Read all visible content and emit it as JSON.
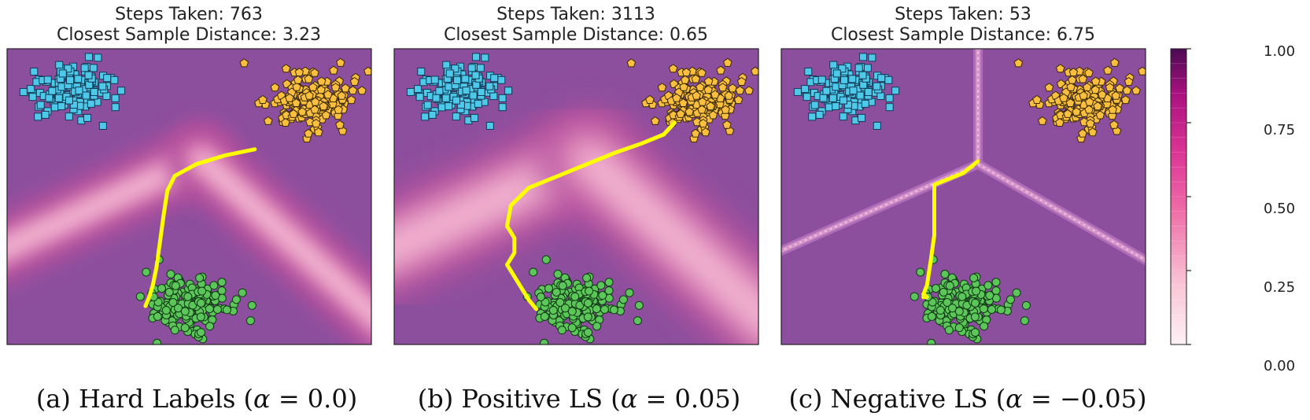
{
  "chart_data": [
    {
      "type": "scatter",
      "title_line1": "Steps Taken: 763",
      "title_line2": "Closest Sample Distance: 3.23",
      "caption_prefix": "(a) Hard Labels (",
      "caption_var": "α",
      "caption_rest": " = 0.0)",
      "style": "hard",
      "trajectory": [
        [
          0.68,
          0.34
        ],
        [
          0.6,
          0.36
        ],
        [
          0.52,
          0.39
        ],
        [
          0.46,
          0.43
        ],
        [
          0.44,
          0.48
        ],
        [
          0.43,
          0.56
        ],
        [
          0.42,
          0.65
        ],
        [
          0.41,
          0.74
        ],
        [
          0.4,
          0.8
        ],
        [
          0.39,
          0.84
        ],
        [
          0.38,
          0.87
        ]
      ],
      "ridge_center": [
        0.53,
        0.37
      ],
      "ridge_arms": [
        [
          0.53,
          -0.05
        ],
        [
          -0.05,
          0.7
        ],
        [
          1.05,
          0.95
        ]
      ]
    },
    {
      "type": "scatter",
      "title_line1": "Steps Taken: 3113",
      "title_line2": "Closest Sample Distance: 0.65",
      "caption_prefix": "(b) Positive LS (",
      "caption_var": "α",
      "caption_rest": " = 0.05)",
      "style": "positive",
      "trajectory": [
        [
          0.77,
          0.25
        ],
        [
          0.74,
          0.29
        ],
        [
          0.68,
          0.32
        ],
        [
          0.61,
          0.35
        ],
        [
          0.53,
          0.39
        ],
        [
          0.45,
          0.43
        ],
        [
          0.37,
          0.47
        ],
        [
          0.32,
          0.53
        ],
        [
          0.31,
          0.6
        ],
        [
          0.33,
          0.64
        ],
        [
          0.33,
          0.69
        ],
        [
          0.31,
          0.73
        ],
        [
          0.34,
          0.79
        ],
        [
          0.37,
          0.85
        ],
        [
          0.39,
          0.88
        ]
      ],
      "ridge_center": [
        0.53,
        0.37
      ],
      "ridge_arms": [
        [
          0.53,
          -0.05
        ],
        [
          -0.05,
          0.7
        ],
        [
          1.05,
          0.95
        ]
      ]
    },
    {
      "type": "scatter",
      "title_line1": "Steps Taken: 53",
      "title_line2": "Closest Sample Distance: 6.75",
      "caption_prefix": "(c) Negative LS (",
      "caption_var": "α",
      "caption_rest": " = −0.05)",
      "style": "negative",
      "trajectory": [
        [
          0.54,
          0.38
        ],
        [
          0.5,
          0.42
        ],
        [
          0.44,
          0.45
        ],
        [
          0.42,
          0.46
        ],
        [
          0.42,
          0.53
        ],
        [
          0.42,
          0.63
        ],
        [
          0.41,
          0.72
        ],
        [
          0.4,
          0.8
        ],
        [
          0.39,
          0.83
        ],
        [
          0.4,
          0.84
        ],
        [
          0.39,
          0.84
        ]
      ],
      "ridge_center": [
        0.54,
        0.39
      ],
      "ridge_arms": [
        [
          0.54,
          -0.05
        ],
        [
          -0.05,
          0.71
        ],
        [
          1.05,
          0.75
        ]
      ]
    }
  ],
  "clusters": {
    "blue": {
      "center": [
        0.17,
        0.14
      ],
      "spread": [
        0.055,
        0.045
      ],
      "count": 150,
      "color": "#4ec9e9",
      "marker": "square"
    },
    "orange": {
      "center": [
        0.83,
        0.17
      ],
      "spread": [
        0.055,
        0.045
      ],
      "count": 180,
      "color": "#fbbf3f",
      "marker": "pentagon"
    },
    "green": {
      "center": [
        0.5,
        0.87
      ],
      "spread": [
        0.055,
        0.045
      ],
      "count": 180,
      "color": "#5cc65a",
      "marker": "circle"
    }
  },
  "colorbar": {
    "ticks": [
      "1.00",
      "0.75",
      "0.50",
      "0.25",
      "0.00"
    ],
    "min": 0.0,
    "max": 1.0
  },
  "colors": {
    "background": "#8c4f9d",
    "trajectory": "#ffff00"
  }
}
